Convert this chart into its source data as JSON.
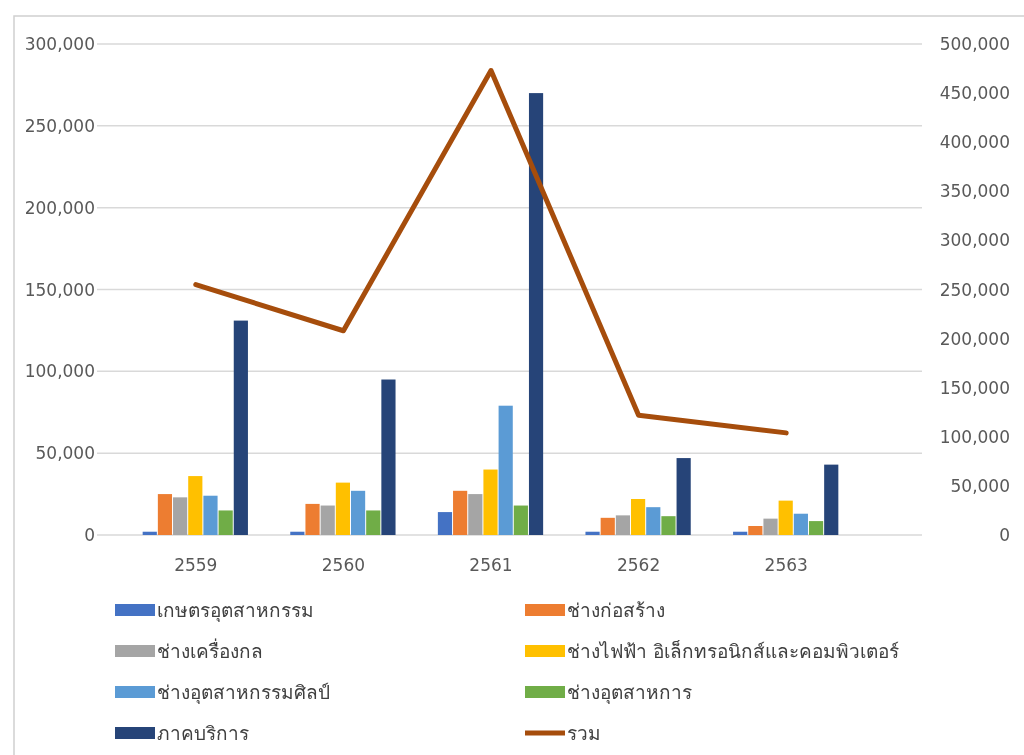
{
  "chart_data": {
    "type": "bar",
    "categories": [
      "2559",
      "2560",
      "2561",
      "2562",
      "2563"
    ],
    "series": [
      {
        "name": "เกษตรอุตสาหกรรม",
        "color": "#4472c4",
        "values": [
          2000,
          2000,
          14000,
          2000,
          2000
        ]
      },
      {
        "name": "ช่างก่อสร้าง",
        "color": "#ed7d31",
        "values": [
          25000,
          19000,
          27000,
          10500,
          5500
        ]
      },
      {
        "name": "ช่างเครื่องกล",
        "color": "#a5a5a5",
        "values": [
          23000,
          18000,
          25000,
          12000,
          10000
        ]
      },
      {
        "name": "ช่างไฟฟ้า อิเล็กทรอนิกส์และคอมพิวเตอร์",
        "color": "#ffc000",
        "values": [
          36000,
          32000,
          40000,
          22000,
          21000
        ]
      },
      {
        "name": "ช่างอุตสาหกรรมศิลป์",
        "color": "#5b9bd5",
        "values": [
          24000,
          27000,
          79000,
          17000,
          13000
        ]
      },
      {
        "name": "ช่างอุตสาหการ",
        "color": "#70ad47",
        "values": [
          15000,
          15000,
          18000,
          11500,
          8500
        ]
      },
      {
        "name": "ภาคบริการ",
        "color": "#264478",
        "values": [
          131000,
          95000,
          270000,
          47000,
          43000
        ]
      },
      {
        "name": "รวม",
        "color": "#a64d0c",
        "type": "line",
        "axis": "y2",
        "values": [
          255000,
          208000,
          473000,
          122000,
          104000
        ]
      }
    ],
    "ylim": [
      0,
      300000
    ],
    "yticks": [
      {
        "value": 0,
        "label": "0"
      },
      {
        "value": 50000,
        "label": "50,000"
      },
      {
        "value": 100000,
        "label": "100,000"
      },
      {
        "value": 150000,
        "label": "150,000"
      },
      {
        "value": 200000,
        "label": "200,000"
      },
      {
        "value": 250000,
        "label": "250,000"
      },
      {
        "value": 300000,
        "label": "300,000"
      }
    ],
    "y2lim": [
      0,
      500000
    ],
    "y2ticks": [
      {
        "value": 0,
        "label": "0"
      },
      {
        "value": 50000,
        "label": "50,000"
      },
      {
        "value": 100000,
        "label": "100,000"
      },
      {
        "value": 150000,
        "label": "150,000"
      },
      {
        "value": 200000,
        "label": "200,000"
      },
      {
        "value": 250000,
        "label": "250,000"
      },
      {
        "value": 300000,
        "label": "300,000"
      },
      {
        "value": 350000,
        "label": "350,000"
      },
      {
        "value": 400000,
        "label": "400,000"
      },
      {
        "value": 450000,
        "label": "450,000"
      },
      {
        "value": 500000,
        "label": "500,000"
      }
    ],
    "grid": "y",
    "legend": "bottom"
  }
}
